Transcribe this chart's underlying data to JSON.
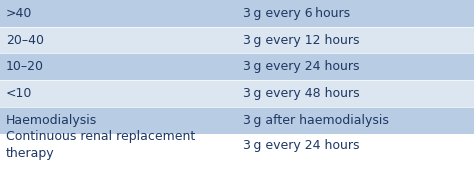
{
  "left_col": [
    ">40",
    "20–40",
    "10–20",
    "<10",
    "Haemodialysis",
    "Continuous renal replacement\ntherapy"
  ],
  "right_col": [
    "3 g every 6 hours",
    "3 g every 12 hours",
    "3 g every 24 hours",
    "3 g every 48 hours",
    "3 g after haemodialysis",
    "3 g every 24 hours"
  ],
  "row_colors": [
    "#b8cce4",
    "#dce6f1",
    "#b8cce4",
    "#dce6f1",
    "#b8cce4",
    "#ffffff"
  ],
  "text_color": "#1f3864",
  "font_size": 9.0,
  "col_split": 0.5,
  "background_color": "#ffffff",
  "row_heights": [
    1,
    1,
    1,
    1,
    1,
    2
  ]
}
